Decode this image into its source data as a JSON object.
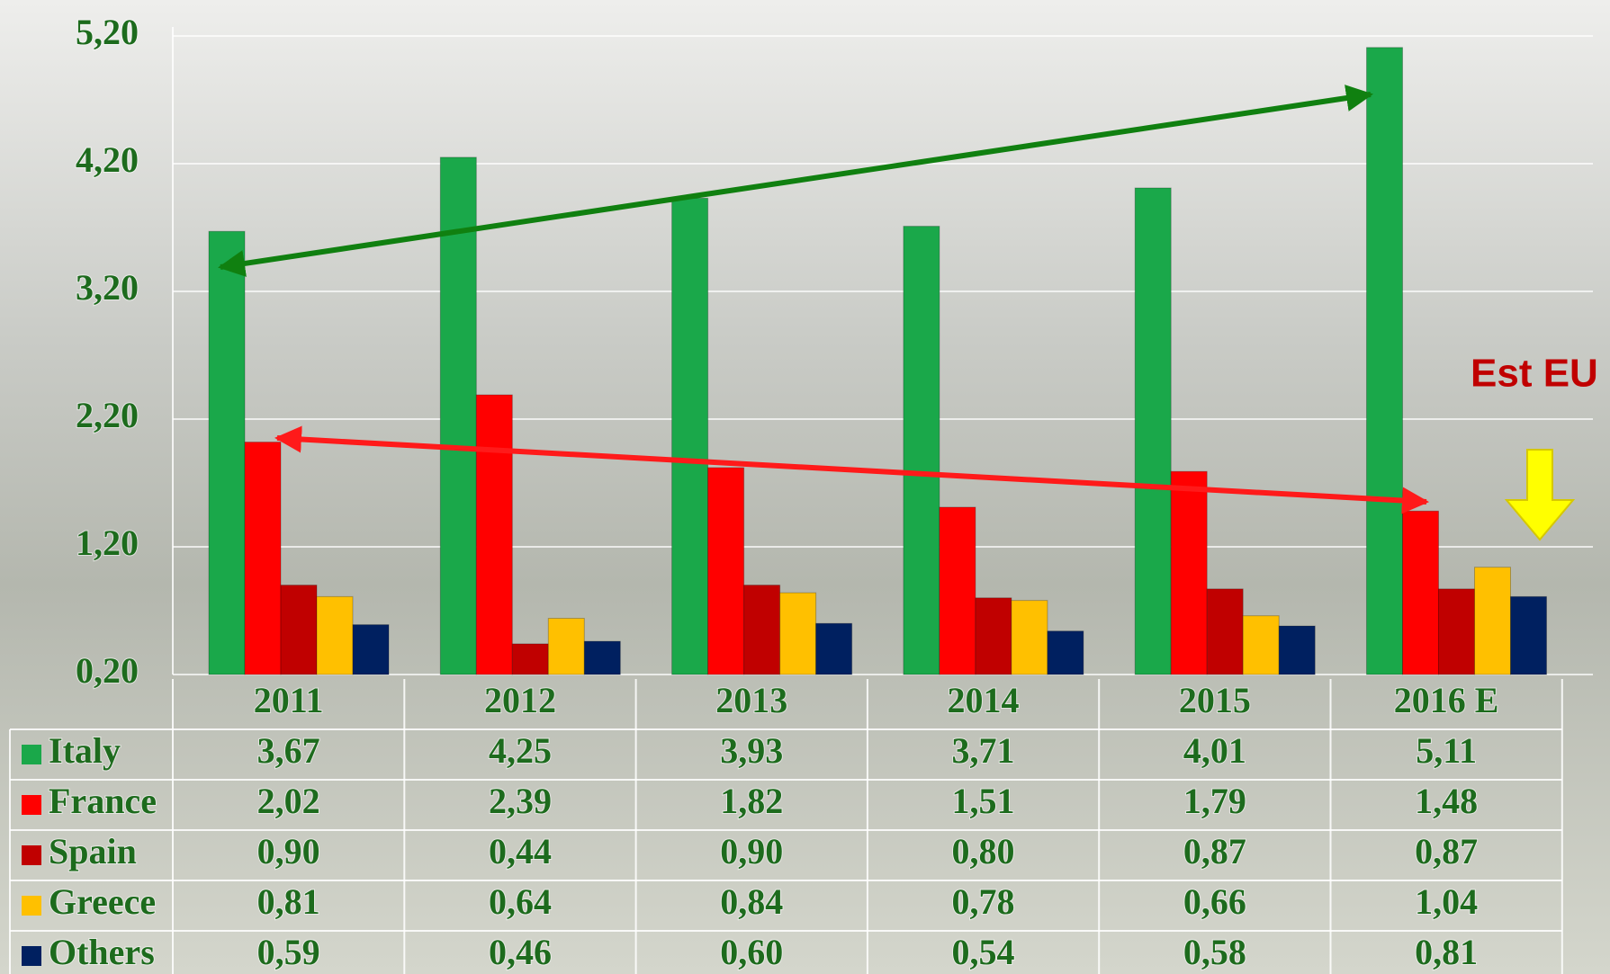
{
  "chart_data": {
    "type": "bar",
    "annotation": "Est EU",
    "categories": [
      "2011",
      "2012",
      "2013",
      "2014",
      "2015",
      "2016 E"
    ],
    "series": [
      {
        "name": "Italy",
        "color": "#1aa84a",
        "values": [
          3.67,
          4.25,
          3.93,
          3.71,
          4.01,
          5.11
        ],
        "value_labels": [
          "3,67",
          "4,25",
          "3,93",
          "3,71",
          "4,01",
          "5,11"
        ]
      },
      {
        "name": "France",
        "color": "#ff0000",
        "values": [
          2.02,
          2.39,
          1.82,
          1.51,
          1.79,
          1.48
        ],
        "value_labels": [
          "2,02",
          "2,39",
          "1,82",
          "1,51",
          "1,79",
          "1,48"
        ]
      },
      {
        "name": "Spain",
        "color": "#c00000",
        "values": [
          0.9,
          0.44,
          0.9,
          0.8,
          0.87,
          0.87
        ],
        "value_labels": [
          "0,90",
          "0,44",
          "0,90",
          "0,80",
          "0,87",
          "0,87"
        ]
      },
      {
        "name": "Greece",
        "color": "#ffc000",
        "values": [
          0.81,
          0.64,
          0.84,
          0.78,
          0.66,
          1.04
        ],
        "value_labels": [
          "0,81",
          "0,64",
          "0,84",
          "0,78",
          "0,66",
          "1,04"
        ]
      },
      {
        "name": "Others",
        "color": "#002060",
        "values": [
          0.59,
          0.46,
          0.6,
          0.54,
          0.58,
          0.81
        ],
        "value_labels": [
          "0,59",
          "0,46",
          "0,60",
          "0,54",
          "0,58",
          "0,81"
        ]
      }
    ],
    "ylim": [
      0.2,
      5.2
    ],
    "yticks": [
      {
        "value": 0.2,
        "label": "0,20"
      },
      {
        "value": 1.2,
        "label": "1,20"
      },
      {
        "value": 2.2,
        "label": "2,20"
      },
      {
        "value": 3.2,
        "label": "3,20"
      },
      {
        "value": 4.2,
        "label": "4,20"
      },
      {
        "value": 5.2,
        "label": "5,20"
      }
    ],
    "grid": true
  }
}
